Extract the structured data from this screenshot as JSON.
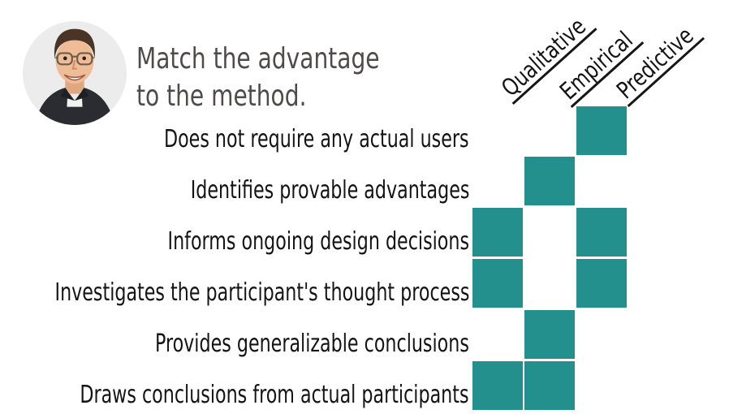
{
  "header": {
    "title_lines": [
      "Match the advantage",
      "to the method."
    ],
    "icons": {
      "avatar": "instructor-headshot-photo"
    }
  },
  "matrix": {
    "methods": [
      "Qualitative",
      "Empirical",
      "Predictive"
    ],
    "advantages": [
      {
        "label": "Does not require any actual users",
        "matches": [
          false,
          false,
          true
        ]
      },
      {
        "label": "Identifies provable advantages",
        "matches": [
          false,
          true,
          false
        ]
      },
      {
        "label": "Informs ongoing design decisions",
        "matches": [
          true,
          false,
          true
        ]
      },
      {
        "label": "Investigates the participant's thought process",
        "matches": [
          true,
          false,
          true
        ]
      },
      {
        "label": "Provides generalizable conclusions",
        "matches": [
          false,
          true,
          false
        ]
      },
      {
        "label": "Draws conclusions from actual participants",
        "matches": [
          true,
          true,
          false
        ]
      }
    ],
    "cell_color": "#24908d"
  }
}
